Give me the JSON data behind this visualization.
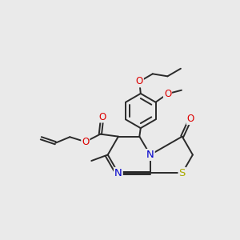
{
  "bg_color": "#eaeaea",
  "bond_color": "#2a2a2a",
  "bond_width": 1.4,
  "dbo": 0.055,
  "atom_colors": {
    "O": "#dd0000",
    "N": "#0000cc",
    "S": "#aaaa00",
    "C": "#2a2a2a"
  },
  "font_size": 8.0,
  "figsize": [
    3.0,
    3.0
  ],
  "dpi": 100
}
